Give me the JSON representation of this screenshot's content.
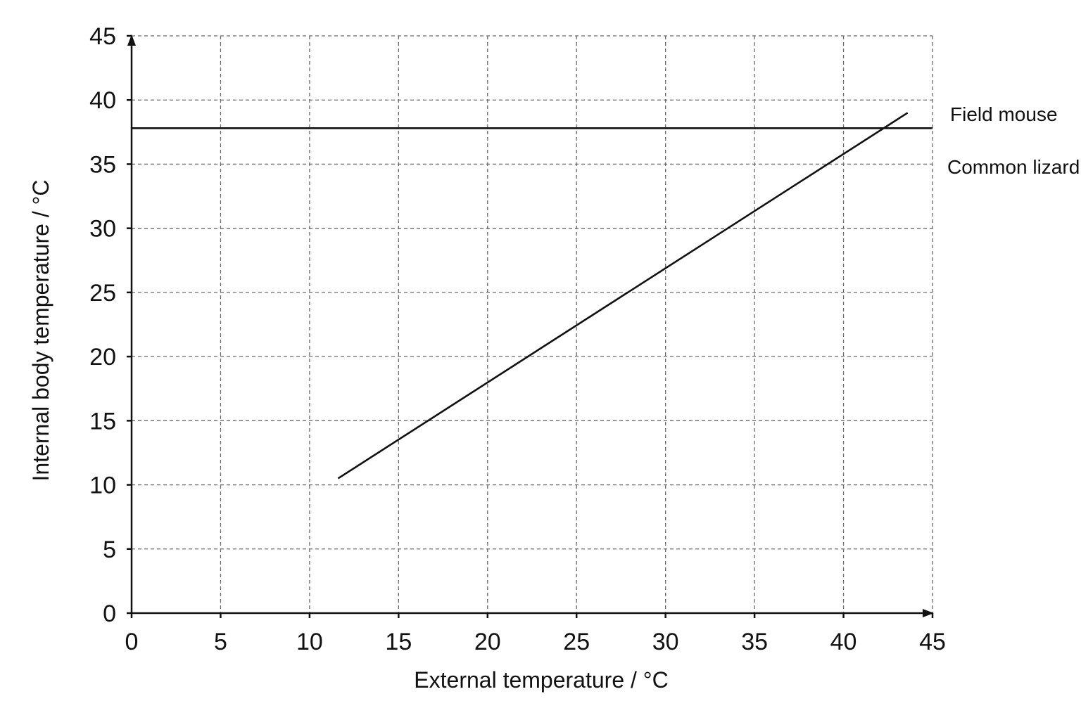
{
  "chart_data": {
    "type": "line",
    "title": "",
    "xlabel": "External temperature / °C",
    "ylabel": "Internal body temperature  / °C",
    "xlim": [
      0,
      45
    ],
    "ylim": [
      0,
      45
    ],
    "x_ticks": [
      "0",
      "5",
      "10",
      "15",
      "20",
      "25",
      "30",
      "35",
      "40",
      "45"
    ],
    "y_ticks": [
      "0",
      "5",
      "10",
      "15",
      "20",
      "25",
      "30",
      "35",
      "40",
      "45"
    ],
    "grid": true,
    "grid_style": "dashed",
    "legend": "none",
    "series": [
      {
        "name": "Field mouse",
        "x": [
          0,
          45
        ],
        "y": [
          37.8,
          37.8
        ],
        "color": "#111111"
      },
      {
        "name": "Common lizard",
        "x": [
          11.6,
          43.6
        ],
        "y": [
          10.5,
          39.0
        ],
        "color": "#111111"
      }
    ]
  }
}
